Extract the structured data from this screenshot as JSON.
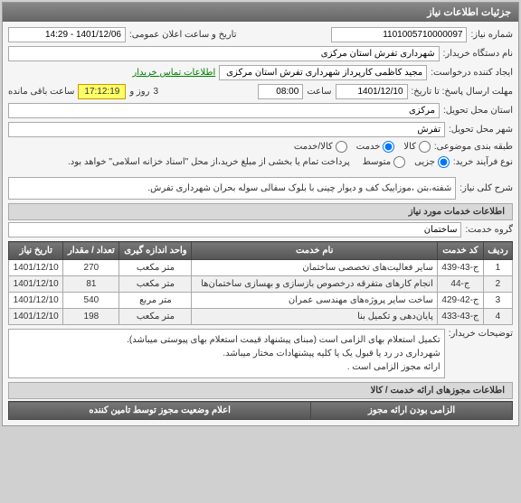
{
  "main_panel_title": "جزئیات اطلاعات نیاز",
  "labels": {
    "need_number": "شماره نیاز:",
    "announce_date": "تاریخ و ساعت اعلان عمومی:",
    "buyer_org": "نام دستگاه خریدار:",
    "requester": "ایجاد کننده درخواست:",
    "contact_link": "اطلاعات تماس خریدار",
    "deadline": "مهلت ارسال پاسخ: تا تاریخ:",
    "time": "ساعت",
    "days_and": "روز و",
    "remaining": "ساعت باقی مانده",
    "delivery_province": "استان محل تحویل:",
    "delivery_city": "شهر محل تحویل:",
    "subject_type": "طبقه بندی موضوعی:",
    "goods": "کالا",
    "service": "خدمت",
    "goods_service": "کالا/خدمت",
    "buy_process": "نوع فرآیند خرید:",
    "partial": "جزیی",
    "medium": "متوسط",
    "medium_note": "پرداخت تمام یا بخشی از مبلغ خرید،از محل \"اسناد خزانه اسلامی\" خواهد بود.",
    "general_desc": "شرح کلی نیاز:",
    "services_info": "اطلاعات خدمات مورد نیاز",
    "service_group": "گروه خدمت:",
    "buyer_notes": "توضیحات خریدار:",
    "permits": "اطلاعات مجوزهای ارائه خدمت / کالا"
  },
  "values": {
    "need_number": "1101005710000097",
    "announce_date": "1401/12/06 - 14:29",
    "buyer_org": "شهرداری تفرش استان مرکزی",
    "requester": "مجید کاظمی کارپرداز شهرداری تفرش استان مرکزی",
    "deadline_date": "1401/12/10",
    "deadline_time": "08:00",
    "days": "3",
    "remaining_time": "17:12:19",
    "delivery_province": "مرکزی",
    "delivery_city": "تفرش",
    "service_group": "ساختمان",
    "general_desc": "شفته،بتن ،موزاییک کف و دیوار چینی با بلوک سفالی سوله بحران شهرداری تفرش.",
    "buyer_notes": "تکمیل استعلام بهای الزامی است (مبنای پیشنهاد قیمت استعلام بهای پیوستی میباشد).\nشهرداری در رد یا قبول یک یا کلیه پیشنهادات مختار میباشد.\nارائه مجوز الزامی است ."
  },
  "table": {
    "headers": [
      "ردیف",
      "کد خدمت",
      "نام خدمت",
      "واحد اندازه گیری",
      "تعداد / مقدار",
      "تاریخ نیاز"
    ],
    "rows": [
      [
        "1",
        "ج-43-439",
        "سایر فعالیت‌های تخصصی ساختمان",
        "متر مکعب",
        "270",
        "1401/12/10"
      ],
      [
        "2",
        "ج-44",
        "انجام کارهای متفرقه درخصوص بازسازی و بهسازی ساختمان‌ها",
        "متر مکعب",
        "81",
        "1401/12/10"
      ],
      [
        "3",
        "ج-42-429",
        "ساخت سایر پروژه‌های مهندسی عمران",
        "متر مربع",
        "540",
        "1401/12/10"
      ],
      [
        "4",
        "ج-43-433",
        "پایان‌دهی و تکمیل بنا",
        "متر مکعب",
        "198",
        "1401/12/10"
      ]
    ]
  },
  "bottom": {
    "header1": "الزامی بودن ارائه مجوز",
    "header2": "اعلام وضعیت مجوز توسط تامین کننده"
  }
}
